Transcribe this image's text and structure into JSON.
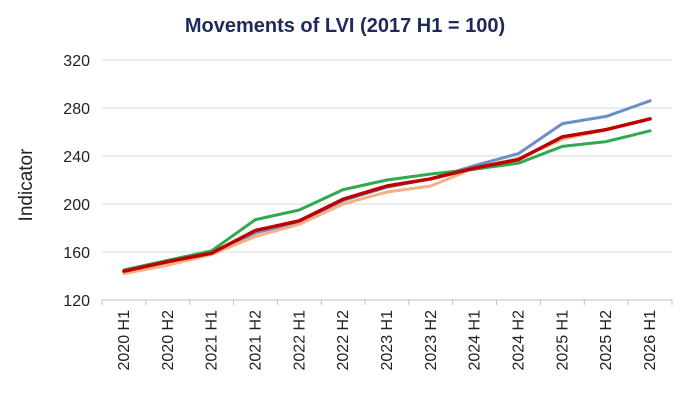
{
  "chart_data": {
    "type": "line",
    "title": "Movements of LVI (2017 H1 = 100)",
    "xlabel": "",
    "ylabel": "Indicator",
    "categories": [
      "2020 H1",
      "2020 H2",
      "2021 H1",
      "2021 H2",
      "2022 H1",
      "2022 H2",
      "2023 H1",
      "2023 H2",
      "2024 H1",
      "2024 H2",
      "2025 H1",
      "2025 H2",
      "2026 H1"
    ],
    "ylim": [
      120,
      320
    ],
    "yticks": [
      120,
      160,
      200,
      240,
      280,
      320
    ],
    "grid": "horizontal",
    "legend": "none",
    "series": [
      {
        "color": "#6b8fc7",
        "width": 3,
        "values": [
          144,
          151,
          159,
          176,
          185,
          203,
          214,
          221,
          232,
          242,
          267,
          273,
          286
        ]
      },
      {
        "color": "#f4b183",
        "width": 3,
        "values": [
          142,
          149,
          158,
          173,
          183,
          200,
          210,
          215,
          230,
          238,
          254,
          262,
          271
        ]
      },
      {
        "color": "#2eaa4f",
        "width": 3,
        "values": [
          145,
          153,
          161,
          187,
          195,
          212,
          220,
          225,
          229,
          234,
          248,
          252,
          261
        ]
      },
      {
        "color": "#c00000",
        "width": 3.5,
        "values": [
          144,
          152,
          159,
          178,
          186,
          204,
          215,
          221,
          230,
          237,
          256,
          262,
          271
        ]
      }
    ]
  }
}
